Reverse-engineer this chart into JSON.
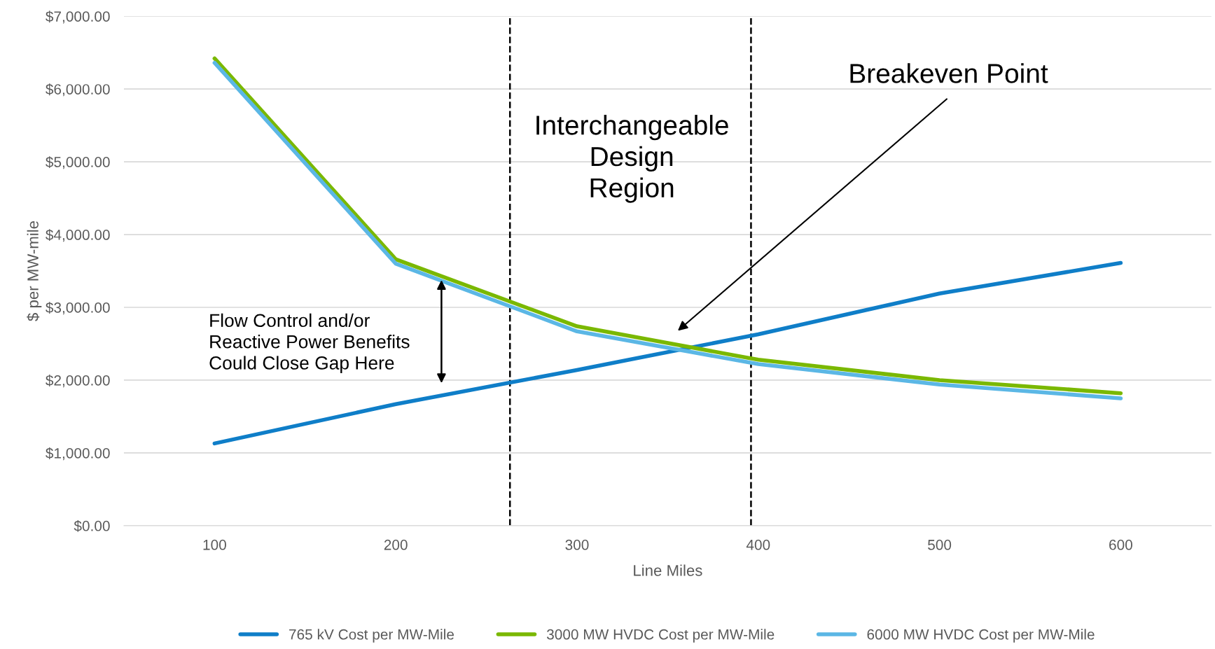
{
  "chart_data": {
    "type": "line",
    "xlabel": "Line Miles",
    "ylabel": "$ per MW-mile",
    "x": [
      100,
      200,
      300,
      400,
      500,
      600
    ],
    "series": [
      {
        "name": "765 kV Cost per MW-Mile",
        "color": "#0f7ec8",
        "values": [
          1130,
          1670,
          2140,
          2630,
          3190,
          3610
        ]
      },
      {
        "name": "3000 MW HVDC Cost per MW-Mile",
        "color": "#7ab800",
        "values": [
          6420,
          3660,
          2740,
          2280,
          2000,
          1820
        ]
      },
      {
        "name": "6000 MW HVDC Cost per MW-Mile",
        "color": "#5bb7e5",
        "values": [
          6360,
          3600,
          2670,
          2220,
          1940,
          1750
        ]
      }
    ],
    "xlim": [
      50,
      650
    ],
    "xticks": [
      100,
      200,
      300,
      400,
      500,
      600
    ],
    "ylim": [
      0,
      7000
    ],
    "yticks": [
      {
        "value": 0,
        "label": "$0.00"
      },
      {
        "value": 1000,
        "label": "$1,000.00"
      },
      {
        "value": 2000,
        "label": "$2,000.00"
      },
      {
        "value": 3000,
        "label": "$3,000.00"
      },
      {
        "value": 4000,
        "label": "$4,000.00"
      },
      {
        "value": 5000,
        "label": "$5,000.00"
      },
      {
        "value": 6000,
        "label": "$6,000.00"
      },
      {
        "value": 7000,
        "label": "$7,000.00"
      }
    ],
    "ref_lines": [
      {
        "axis": "x",
        "value": 263,
        "color": "#000000",
        "line_style": "dashed"
      },
      {
        "axis": "x",
        "value": 396,
        "color": "#000000",
        "line_style": "dashed"
      }
    ],
    "annotations": [
      "Breakeven Point",
      "Interchangeable\nDesign\nRegion",
      "Flow Control and/or\nReactive Power Benefits\nCould Close Gap Here"
    ],
    "grid": "y",
    "legend": "bottom",
    "marker": "none",
    "line_style": "solid"
  }
}
